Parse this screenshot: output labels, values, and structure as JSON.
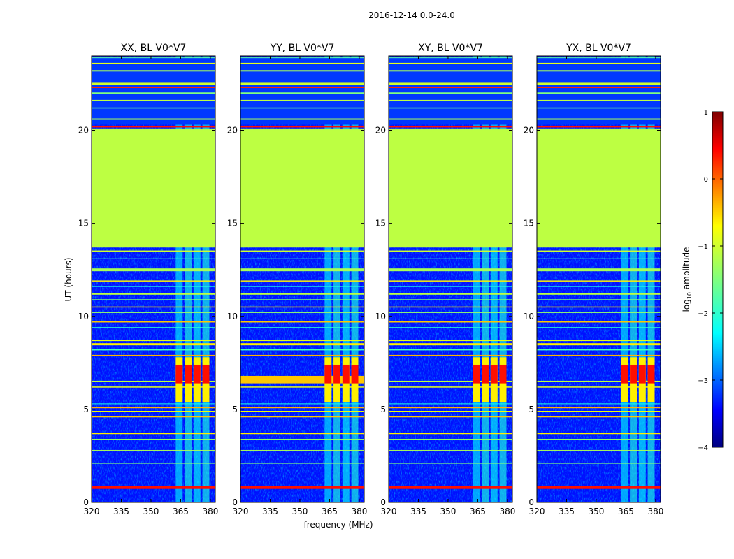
{
  "chart_data": {
    "type": "heatmap",
    "title": "2016-12-14 0.0-24.0",
    "xlabel": "frequency (MHz)",
    "ylabel": "UT (hours)",
    "xlim": [
      320,
      382.5
    ],
    "ylim": [
      0,
      24
    ],
    "x_ticks": [
      320,
      335,
      350,
      365,
      380
    ],
    "y_ticks": [
      0,
      5,
      10,
      15,
      20
    ],
    "colorbar": {
      "label_prefix": "log",
      "label_sub": "10",
      "label_suffix": " amplitude",
      "range": [
        -4,
        1
      ],
      "ticks": [
        "1",
        "0",
        "−1",
        "−2",
        "−3",
        "−4"
      ],
      "tick_values": [
        1,
        0,
        -1,
        -2,
        -3,
        -4
      ]
    },
    "panels": [
      {
        "title": "XX, BL V0*V7",
        "rfi_band_mhz": [
          362,
          380
        ],
        "strong_burst_ut": [
          6.4,
          7.4
        ]
      },
      {
        "title": "YY, BL V0*V7",
        "rfi_band_mhz": [
          362,
          380
        ],
        "strong_burst_ut": [
          6.4,
          7.4
        ]
      },
      {
        "title": "XY, BL V0*V7",
        "rfi_band_mhz": [
          362,
          380
        ],
        "strong_burst_ut": [
          6.4,
          7.4
        ]
      },
      {
        "title": "YX, BL V0*V7",
        "rfi_band_mhz": [
          362,
          380
        ],
        "strong_burst_ut": [
          6.4,
          7.4
        ]
      }
    ],
    "flagged_gap_ut": [
      13.7,
      20.1
    ],
    "flagged_gap_value": -1.2
  }
}
